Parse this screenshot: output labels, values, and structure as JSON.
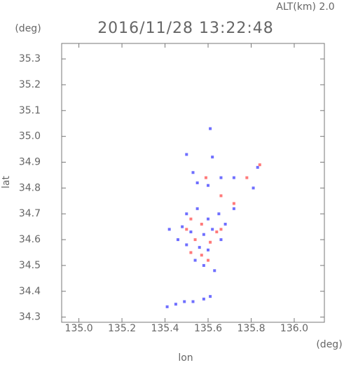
{
  "chart_data": {
    "type": "scatter",
    "title": "2016/11/28 13:22:48",
    "subtitle": "ALT(km) 2.0",
    "y_unit": "(deg)",
    "x_unit": "(deg)",
    "xlabel": "lon",
    "ylabel": "lat",
    "xlim": [
      134.92,
      136.14
    ],
    "ylim": [
      34.28,
      35.36
    ],
    "xticks": [
      {
        "value": 135,
        "label": "135.0"
      },
      135.2,
      135.4,
      135.6,
      135.8,
      {
        "value": 136,
        "label": "136.0"
      }
    ],
    "yticks": [
      34.3,
      34.4,
      34.5,
      34.6,
      34.7,
      34.8,
      34.9,
      {
        "value": 35,
        "label": "35.0"
      },
      35.1,
      35.2,
      35.3
    ],
    "series": [
      {
        "color": "#6f6fff",
        "x": [
          135.5,
          135.62,
          135.53,
          135.55,
          135.6,
          135.66,
          135.72,
          135.81,
          135.83,
          135.5,
          135.55,
          135.6,
          135.65,
          135.48,
          135.52,
          135.58,
          135.62,
          135.68,
          135.5,
          135.56,
          135.6,
          135.66,
          135.54,
          135.58,
          135.63,
          135.42,
          135.41,
          135.45,
          135.49,
          135.53,
          135.58,
          135.61,
          135.61,
          135.72,
          135.46
        ],
        "values": [
          34.93,
          34.92,
          34.86,
          34.82,
          34.81,
          34.84,
          34.84,
          34.8,
          34.88,
          34.7,
          34.72,
          34.68,
          34.7,
          34.65,
          34.63,
          34.62,
          34.64,
          34.66,
          34.58,
          34.57,
          34.56,
          34.6,
          34.52,
          34.5,
          34.48,
          34.64,
          34.34,
          34.35,
          34.36,
          34.36,
          34.37,
          34.38,
          35.03,
          34.72,
          34.6
        ]
      },
      {
        "color": "#ff7a7a",
        "x": [
          135.59,
          135.66,
          135.78,
          135.84,
          135.52,
          135.57,
          135.64,
          135.54,
          135.61,
          135.66,
          135.52,
          135.57,
          135.6,
          135.72,
          135.5
        ],
        "values": [
          34.84,
          34.77,
          34.84,
          34.89,
          34.68,
          34.66,
          34.63,
          34.6,
          34.59,
          34.64,
          34.55,
          34.54,
          34.52,
          34.74,
          34.64
        ]
      }
    ]
  }
}
